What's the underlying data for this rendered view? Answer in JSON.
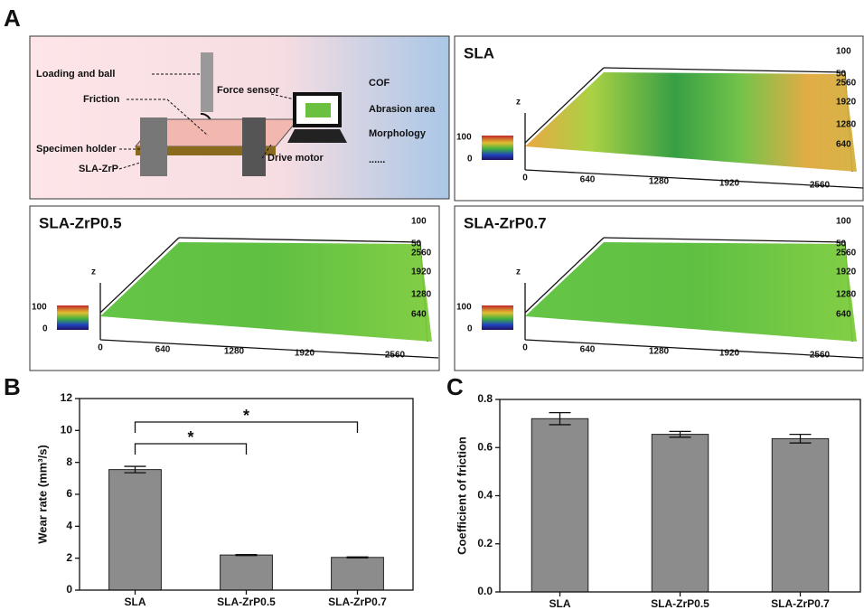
{
  "panel_labels": [
    "A",
    "B",
    "C"
  ],
  "diagram": {
    "labels": [
      "Loading and ball",
      "Friction",
      "Specimen holder",
      "SLA-ZrP",
      "Force sensor",
      "Drive motor"
    ],
    "outputs": [
      "COF",
      "Abrasion area",
      "Morphology",
      "......"
    ]
  },
  "surfaces": [
    {
      "title": "SLA",
      "z_ticks": [
        "100",
        "50"
      ],
      "y_ticks": [
        "2560",
        "1920",
        "1280",
        "640"
      ],
      "x_ticks": [
        "0",
        "640",
        "1280",
        "1920",
        "2560"
      ],
      "z_label": "z",
      "colorbar": [
        "100",
        "0"
      ]
    },
    {
      "title": "SLA-ZrP0.5",
      "z_ticks": [
        "100",
        "50"
      ],
      "y_ticks": [
        "2560",
        "1920",
        "1280",
        "640"
      ],
      "x_ticks": [
        "0",
        "640",
        "1280",
        "1920",
        "2560"
      ],
      "z_label": "z",
      "colorbar": [
        "100",
        "0"
      ]
    },
    {
      "title": "SLA-ZrP0.7",
      "z_ticks": [
        "100",
        "50"
      ],
      "y_ticks": [
        "2560",
        "1920",
        "1280",
        "640"
      ],
      "x_ticks": [
        "0",
        "640",
        "1280",
        "1920",
        "2560"
      ],
      "z_label": "z",
      "colorbar": [
        "100",
        "0"
      ]
    }
  ],
  "chart_data": [
    {
      "type": "bar",
      "ylabel": "Wear rate (mm³/s)",
      "categories": [
        "SLA",
        "SLA-ZrP0.5",
        "SLA-ZrP0.7"
      ],
      "values": [
        7.55,
        2.2,
        2.05
      ],
      "errors": [
        0.2,
        0.03,
        0.03
      ],
      "color": "#8c8c8c",
      "ylim": [
        0,
        12
      ],
      "yticks": [
        0,
        2,
        4,
        6,
        8,
        10,
        12
      ],
      "comparisons": [
        {
          "label": "*",
          "categories": [
            "SLA",
            "SLA-ZrP0.7"
          ]
        },
        {
          "label": "*",
          "categories": [
            "SLA",
            "SLA-ZrP0.5"
          ]
        }
      ]
    },
    {
      "type": "bar",
      "ylabel": "Coefficient of friction",
      "categories": [
        "SLA",
        "SLA-ZrP0.5",
        "SLA-ZrP0.7"
      ],
      "values": [
        0.72,
        0.655,
        0.637
      ],
      "errors": [
        0.025,
        0.012,
        0.018
      ],
      "color": "#8c8c8c",
      "ylim": [
        0,
        0.8
      ],
      "yticks": [
        {
          "value": 0,
          "label": "0.0"
        },
        0.2,
        0.4,
        0.6,
        0.8
      ]
    }
  ]
}
